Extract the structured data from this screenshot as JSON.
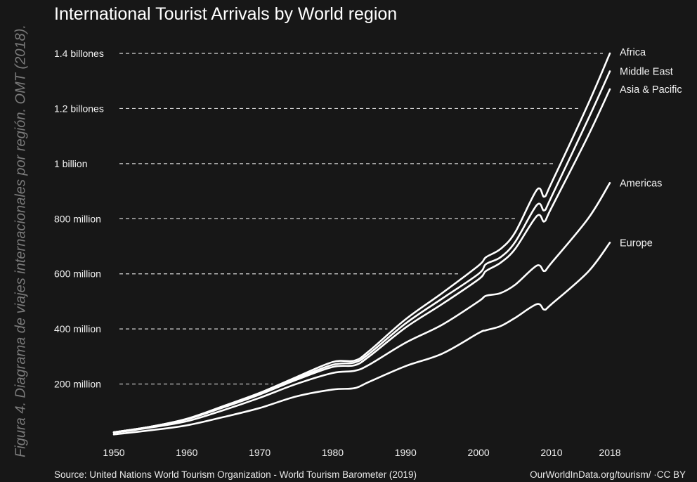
{
  "caption": "Figura 4.   Diagrama de viajes internacionales por región. OMT (2018).",
  "source": "Source: United Nations World Tourism Organization - World Tourism Barometer (2019)",
  "credit": "OurWorldInData.org/tourism/ ·CC BY",
  "chart_data": {
    "type": "area",
    "title": "International Tourist Arrivals by World region",
    "xlabel": "",
    "ylabel": "",
    "xlim": [
      1950,
      2018
    ],
    "ylim": [
      0,
      1400
    ],
    "x_ticks": [
      1950,
      1960,
      1970,
      1980,
      1990,
      2000,
      2010,
      2018
    ],
    "y_ticks": [
      {
        "value": 200,
        "label": "200 million"
      },
      {
        "value": 400,
        "label": "400 million"
      },
      {
        "value": 600,
        "label": "600 million"
      },
      {
        "value": 800,
        "label": "800 million"
      },
      {
        "value": 1000,
        "label": "1 billion"
      },
      {
        "value": 1200,
        "label": "1.2 billones"
      },
      {
        "value": 1400,
        "label": "1.4 billones"
      }
    ],
    "grid": "dashed horizontal",
    "legend": "direct labels at right",
    "x": [
      1950,
      1955,
      1960,
      1965,
      1970,
      1975,
      1980,
      1983,
      1985,
      1990,
      1995,
      2000,
      2001,
      2003,
      2005,
      2008,
      2009,
      2010,
      2015,
      2018
    ],
    "series": [
      {
        "name": "Europe",
        "values": [
          17,
          32,
          50,
          80,
          113,
          155,
          180,
          185,
          208,
          265,
          310,
          385,
          395,
          410,
          440,
          490,
          470,
          490,
          607,
          713
        ]
      },
      {
        "name": "Americas",
        "values": [
          23,
          42,
          65,
          105,
          150,
          200,
          240,
          248,
          270,
          350,
          415,
          500,
          520,
          530,
          560,
          630,
          610,
          640,
          800,
          930
        ]
      },
      {
        "name": "Asia & Pacific",
        "values": [
          25,
          45,
          72,
          115,
          162,
          215,
          262,
          268,
          300,
          405,
          490,
          580,
          610,
          640,
          690,
          810,
          790,
          840,
          1100,
          1270
        ]
      },
      {
        "name": "Middle East",
        "values": [
          25,
          45,
          73,
          117,
          165,
          220,
          270,
          278,
          310,
          420,
          510,
          600,
          635,
          660,
          715,
          850,
          830,
          880,
          1160,
          1335
        ]
      },
      {
        "name": "Africa",
        "values": [
          25,
          45,
          74,
          120,
          168,
          225,
          280,
          285,
          320,
          435,
          530,
          630,
          660,
          690,
          750,
          905,
          880,
          930,
          1215,
          1400
        ]
      }
    ]
  }
}
